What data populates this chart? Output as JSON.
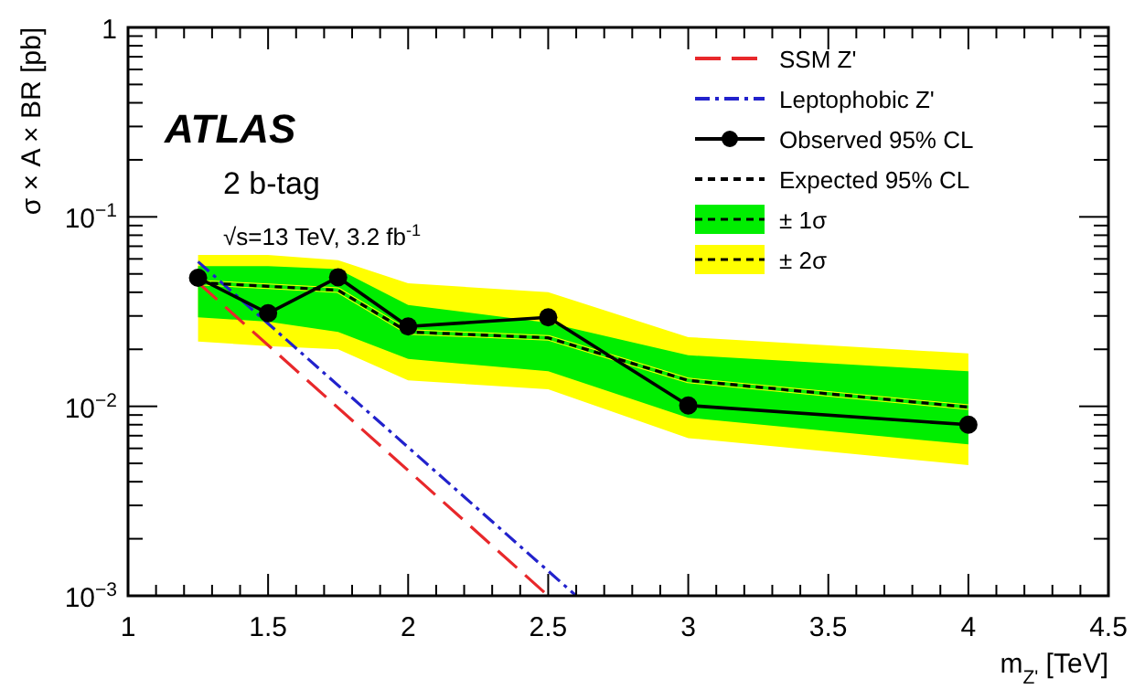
{
  "chart_data": {
    "type": "line",
    "xlabel": "m$_{Z'}$ [TeV]",
    "ylabel": "σ × A × BR [pb]",
    "log": "y",
    "xlim": [
      1,
      4.5
    ],
    "xticks": [
      1,
      1.5,
      2,
      2.5,
      3,
      3.5,
      4,
      4.5
    ],
    "ylim": [
      0.001,
      1
    ],
    "yticks": [
      {
        "value": 0.001,
        "label": "10$^{−3}$"
      },
      {
        "value": 0.01,
        "label": "10$^{−2}$"
      },
      {
        "value": 0.1,
        "label": "10$^{−1}$"
      },
      1
    ],
    "legend": "top right",
    "annotations": [
      "ATLAS",
      "2 b-tag",
      "√s=13 TeV,  3.2 fb$^{-1}$"
    ],
    "series": [
      {
        "name": "SSM Z'",
        "color": "#e8282b",
        "line_style": "dashed",
        "marker": "none",
        "x": [
          1.25,
          2.5
        ],
        "values": [
          0.045,
          0.001
        ]
      },
      {
        "name": "Leptophobic Z'",
        "color": "#2222cc",
        "line_style": "dashdot",
        "marker": "none",
        "x": [
          1.25,
          2.6
        ],
        "values": [
          0.058,
          0.001
        ]
      },
      {
        "name": "Observed 95% CL",
        "color": "#000000",
        "line_style": "solid",
        "marker": "circle",
        "x": [
          1.25,
          1.5,
          1.75,
          2,
          2.5,
          3,
          4
        ],
        "values": [
          0.0477,
          0.031,
          0.048,
          0.0264,
          0.0295,
          0.0101,
          0.008
        ]
      },
      {
        "name": "Expected 95% CL",
        "color": "#000000",
        "line_style": "dotted",
        "marker": "none",
        "x": [
          1.25,
          1.5,
          1.75,
          2,
          2.5,
          3,
          4
        ],
        "values": [
          0.045,
          0.043,
          0.041,
          0.0247,
          0.023,
          0.0137,
          0.0099
        ]
      },
      {
        "name": "± 1σ",
        "color": "#00ee00",
        "x": [
          1.25,
          1.5,
          1.75,
          2,
          2.5,
          3,
          4
        ],
        "values": [
          0.045,
          0.043,
          0.041,
          0.0247,
          0.023,
          0.0137,
          0.0099
        ],
        "lower": [
          0.0295,
          0.028,
          0.0247,
          0.0178,
          0.0153,
          0.0087,
          0.0063
        ],
        "upper": [
          0.055,
          0.055,
          0.053,
          0.0343,
          0.0276,
          0.0186,
          0.0153
        ]
      },
      {
        "name": "± 2σ",
        "color": "#ffff00",
        "x": [
          1.25,
          1.5,
          1.75,
          2,
          2.5,
          3,
          4
        ],
        "values": [
          0.045,
          0.043,
          0.041,
          0.0247,
          0.023,
          0.0137,
          0.0099
        ],
        "lower": [
          0.022,
          0.0208,
          0.02,
          0.0137,
          0.0123,
          0.0068,
          0.0049
        ],
        "upper": [
          0.063,
          0.063,
          0.059,
          0.0446,
          0.04,
          0.0232,
          0.019
        ]
      }
    ]
  }
}
